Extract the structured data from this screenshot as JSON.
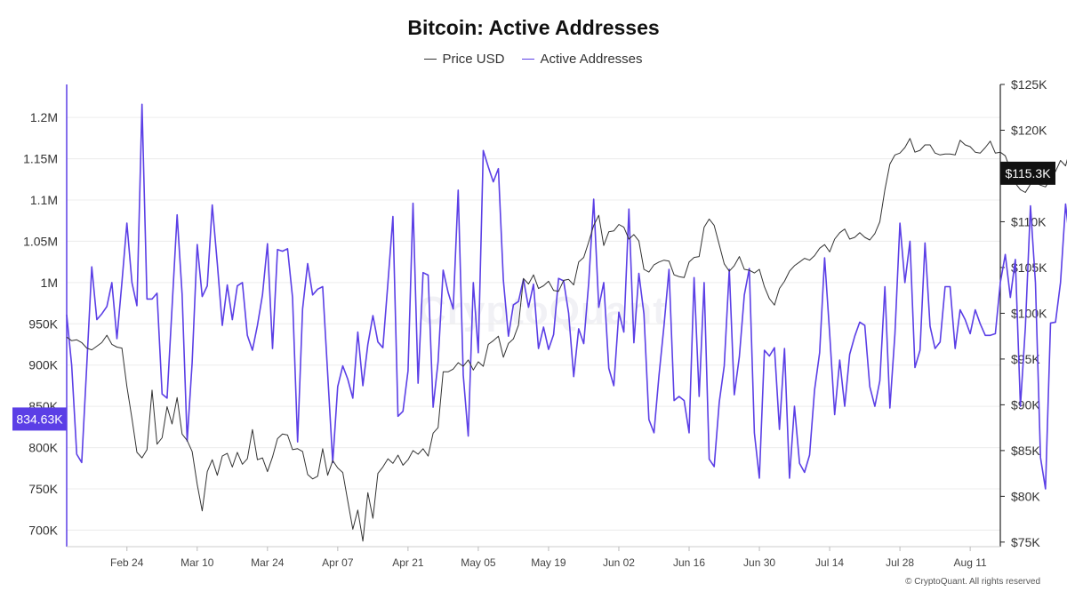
{
  "chart_data": {
    "type": "line",
    "title": "Bitcoin: Active Addresses",
    "legend": [
      {
        "name": "Price USD",
        "color": "#333333"
      },
      {
        "name": "Active Addresses",
        "color": "#5B3FE6"
      }
    ],
    "legend_placement": "top-center",
    "x_axis": {
      "tick_labels": [
        "Feb 24",
        "Mar 10",
        "Mar 24",
        "Apr 07",
        "Apr 21",
        "May 05",
        "May 19",
        "Jun 02",
        "Jun 16",
        "Jun 30",
        "Jul 14",
        "Jul 28",
        "Aug 11"
      ],
      "range": [
        "2025-02-12",
        "2025-08-17"
      ]
    },
    "y_left": {
      "tick_labels": [
        "700K",
        "750K",
        "800K",
        "850K",
        "900K",
        "950K",
        "1M",
        "1.05M",
        "1.1M",
        "1.15M",
        "1.2M"
      ],
      "range": [
        680000,
        1240000
      ],
      "current_value_label": "834.63K",
      "current_value": 834630
    },
    "y_right": {
      "tick_labels": [
        "$75K",
        "$80K",
        "$85K",
        "$90K",
        "$95K",
        "$100K",
        "$105K",
        "$110K",
        "$115K",
        "$120K",
        "$125K"
      ],
      "range": [
        74500,
        125000
      ],
      "current_value_label": "$115.3K",
      "current_value": 115300
    },
    "grid": "horizontal",
    "series": [
      {
        "name": "Active Addresses",
        "axis": "left",
        "start": "2025-02-12",
        "values": [
          961000,
          900000,
          792000,
          782000,
          900000,
          1019000,
          955000,
          962000,
          971000,
          1000000,
          932000,
          1000000,
          1072000,
          1000000,
          972000,
          1216000,
          980000,
          980000,
          987000,
          865000,
          860000,
          970000,
          1082000,
          986000,
          808000,
          903000,
          1046000,
          983000,
          996000,
          1094000,
          1023000,
          948000,
          997000,
          955000,
          996000,
          1000000,
          936000,
          918000,
          948000,
          985000,
          1047000,
          920000,
          1040000,
          1038000,
          1041000,
          982000,
          807000,
          968000,
          1023000,
          985000,
          992000,
          995000,
          890000,
          782000,
          874000,
          899000,
          883000,
          860000,
          940000,
          875000,
          925000,
          960000,
          928000,
          921000,
          1000000,
          1080000,
          838000,
          844000,
          893000,
          1096000,
          878000,
          1012000,
          1009000,
          849000,
          904000,
          1015000,
          988000,
          968000,
          1112000,
          888000,
          814000,
          1000000,
          915000,
          1160000,
          1140000,
          1122000,
          1138000,
          1003000,
          935000,
          973000,
          977000,
          1004000,
          970000,
          998000,
          920000,
          946000,
          919000,
          937000,
          1005000,
          1002000,
          963000,
          886000,
          944000,
          926000,
          1000000,
          1101000,
          970000,
          1000000,
          896000,
          875000,
          964000,
          940000,
          1089000,
          927000,
          1011000,
          962000,
          834000,
          818000,
          887000,
          948000,
          1016000,
          857000,
          862000,
          857000,
          818000,
          1006000,
          862000,
          1000000,
          786000,
          777000,
          855000,
          899000,
          1016000,
          864000,
          910000,
          985000,
          1017000,
          818000,
          763000,
          918000,
          911000,
          921000,
          822000,
          920000,
          763000,
          850000,
          781000,
          770000,
          791000,
          870000,
          915000,
          1030000,
          938000,
          840000,
          906000,
          850000,
          913000,
          935000,
          952000,
          948000,
          874000,
          850000,
          881000,
          995000,
          848000,
          938000,
          1072000,
          1000000,
          1050000,
          897000,
          918000,
          1048000,
          947000,
          920000,
          928000,
          995000,
          995000,
          920000,
          967000,
          955000,
          938000,
          967000,
          950000,
          936000,
          936000,
          938000,
          1000000,
          1034000,
          982000,
          1028000,
          850000,
          946000,
          1093000,
          1000000,
          788000,
          750000,
          951000,
          952000,
          1000000,
          1095000,
          1040000,
          843000,
          912000,
          996000,
          932000,
          960000,
          990000,
          914000,
          900000,
          860000,
          834630
        ]
      },
      {
        "name": "Price USD",
        "axis": "right",
        "start": "2025-02-12",
        "values": [
          97400,
          97000,
          97100,
          96800,
          96200,
          96000,
          96400,
          96800,
          97600,
          96600,
          96300,
          96200,
          92000,
          88500,
          84800,
          84200,
          85100,
          91600,
          85700,
          86400,
          89800,
          87900,
          90800,
          86800,
          86100,
          84900,
          81300,
          78400,
          82700,
          84000,
          82300,
          84400,
          84700,
          83200,
          84800,
          83500,
          84100,
          87300,
          84000,
          84200,
          82700,
          84300,
          86300,
          86800,
          86700,
          85100,
          85200,
          84900,
          82400,
          81900,
          82200,
          85200,
          82300,
          83900,
          83100,
          82600,
          79500,
          76400,
          78500,
          75100,
          80400,
          77600,
          82500,
          83200,
          84100,
          83600,
          84500,
          83400,
          84000,
          85000,
          84600,
          85200,
          84400,
          86900,
          87500,
          93600,
          93600,
          93900,
          94600,
          94200,
          94900,
          93800,
          94700,
          94200,
          96600,
          97000,
          97500,
          95200,
          96700,
          97200,
          98700,
          103800,
          103200,
          104200,
          102700,
          103000,
          103500,
          102500,
          102400,
          103600,
          103700,
          103100,
          105600,
          106100,
          107800,
          109600,
          110700,
          107400,
          108900,
          109000,
          109700,
          109400,
          108100,
          108600,
          107900,
          104800,
          104500,
          105300,
          105600,
          105800,
          105700,
          104200,
          104000,
          103900,
          105600,
          106100,
          106200,
          109400,
          110300,
          109600,
          107500,
          105400,
          104600,
          105200,
          106200,
          104800,
          104700,
          104400,
          104800,
          102900,
          101600,
          100900,
          102700,
          103500,
          104600,
          105200,
          105600,
          106000,
          105800,
          106300,
          107100,
          107500,
          106700,
          108100,
          108800,
          109200,
          108100,
          108300,
          108800,
          108300,
          108000,
          108700,
          110000,
          113500,
          116300,
          117300,
          117500,
          118100,
          119100,
          117600,
          117800,
          118400,
          118400,
          117500,
          117300,
          117400,
          117400,
          117300,
          118900,
          118400,
          118200,
          117600,
          117500,
          118100,
          118800,
          117500,
          117600,
          117200,
          115700,
          114200,
          113500,
          113200,
          114100,
          114300,
          114000,
          113800,
          114700,
          115500,
          116700,
          116100,
          118100,
          117800,
          118300,
          120400,
          121800,
          117900,
          117500,
          117400,
          117400,
          117300,
          115300
        ]
      }
    ]
  },
  "footer": {
    "copyright": "© CryptoQuant. All rights reserved",
    "watermark": "CryptoQuant"
  }
}
